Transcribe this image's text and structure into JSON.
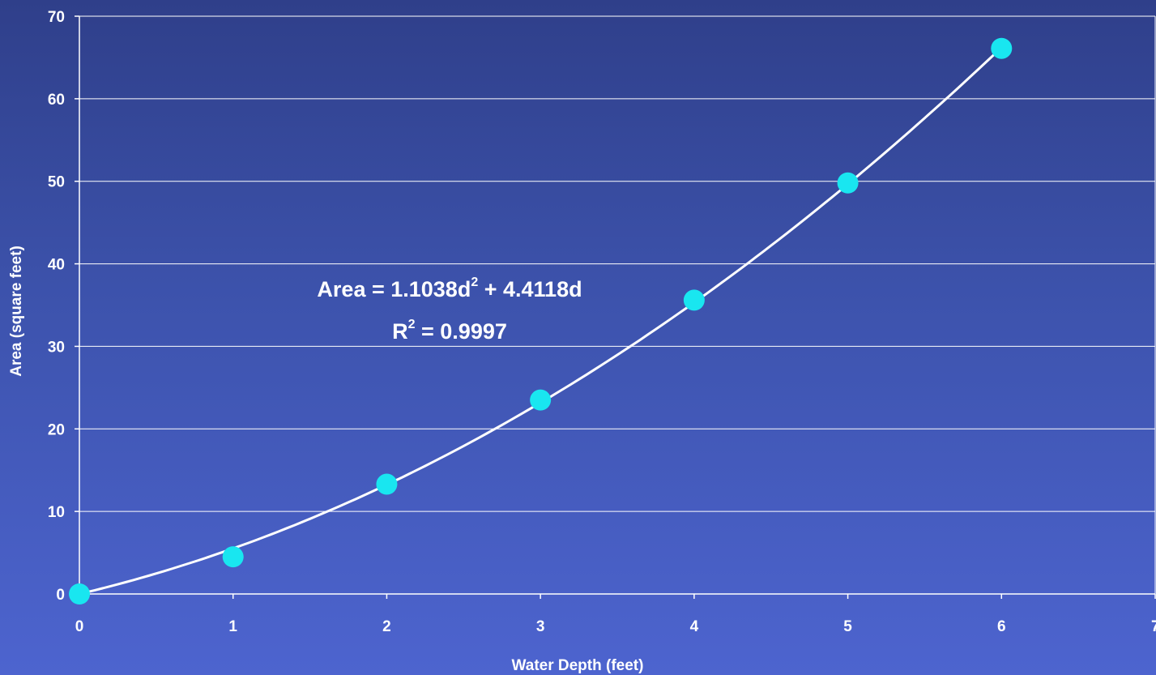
{
  "chart_data": {
    "type": "scatter",
    "xlabel": "Water Depth (feet)",
    "ylabel": "Area (square feet)",
    "xlim": [
      0,
      7
    ],
    "ylim": [
      0,
      70
    ],
    "x_ticks": [
      0,
      1,
      2,
      3,
      4,
      5,
      6,
      7
    ],
    "y_ticks": [
      0,
      10,
      20,
      30,
      40,
      50,
      60,
      70
    ],
    "grid": "horizontal",
    "series": [
      {
        "x": [
          0,
          1,
          2,
          3,
          4,
          5,
          6
        ],
        "y": [
          0,
          4.5,
          13.3,
          23.5,
          35.6,
          49.8,
          66.1
        ],
        "marker_color": "#19e6f0"
      }
    ],
    "trendline": {
      "kind": "polynomial",
      "a": 1.1038,
      "b": 4.4118,
      "color": "#ffffff"
    },
    "annotation": {
      "eq_prefix": "Area = 1.1038d",
      "eq_sup": "2",
      "eq_suffix": " + 4.4118d",
      "r_prefix": "R",
      "r_sup": "2",
      "r_suffix": " = 0.9997"
    }
  }
}
